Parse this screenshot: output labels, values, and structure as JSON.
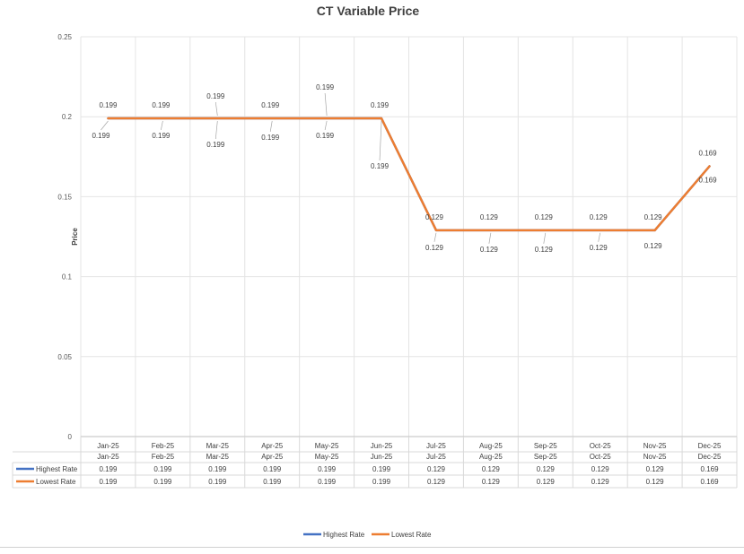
{
  "chart_data": {
    "type": "line",
    "title": "CT Variable Price",
    "ylabel": "Price",
    "xlabel": "",
    "ylim": [
      0,
      0.25
    ],
    "yticks": [
      "0",
      "0.05",
      "0.1",
      "0.15",
      "0.2",
      "0.25"
    ],
    "ytick_values": [
      0,
      0.05,
      0.1,
      0.15,
      0.2,
      0.25
    ],
    "grid": true,
    "legend_position": "bottom",
    "categories": [
      "Jan-25",
      "Feb-25",
      "Mar-25",
      "Apr-25",
      "May-25",
      "Jun-25",
      "Jul-25",
      "Aug-25",
      "Sep-25",
      "Oct-25",
      "Nov-25",
      "Dec-25"
    ],
    "series": [
      {
        "name": "Highest Rate",
        "color": "#4472C4",
        "values": [
          0.199,
          0.199,
          0.199,
          0.199,
          0.199,
          0.199,
          0.129,
          0.129,
          0.129,
          0.129,
          0.129,
          0.169
        ],
        "labels": [
          "0.199",
          "0.199",
          "0.199",
          "0.199",
          "0.199",
          "0.199",
          "0.129",
          "0.129",
          "0.129",
          "0.129",
          "0.129",
          "0.169"
        ]
      },
      {
        "name": "Lowest Rate",
        "color": "#ED7D31",
        "values": [
          0.199,
          0.199,
          0.199,
          0.199,
          0.199,
          0.199,
          0.129,
          0.129,
          0.129,
          0.129,
          0.129,
          0.169
        ],
        "labels": [
          "0.199",
          "0.199",
          "0.199",
          "0.199",
          "0.199",
          "0.199",
          "0.129",
          "0.129",
          "0.129",
          "0.129",
          "0.129",
          "0.169"
        ]
      }
    ],
    "data_table": true
  }
}
